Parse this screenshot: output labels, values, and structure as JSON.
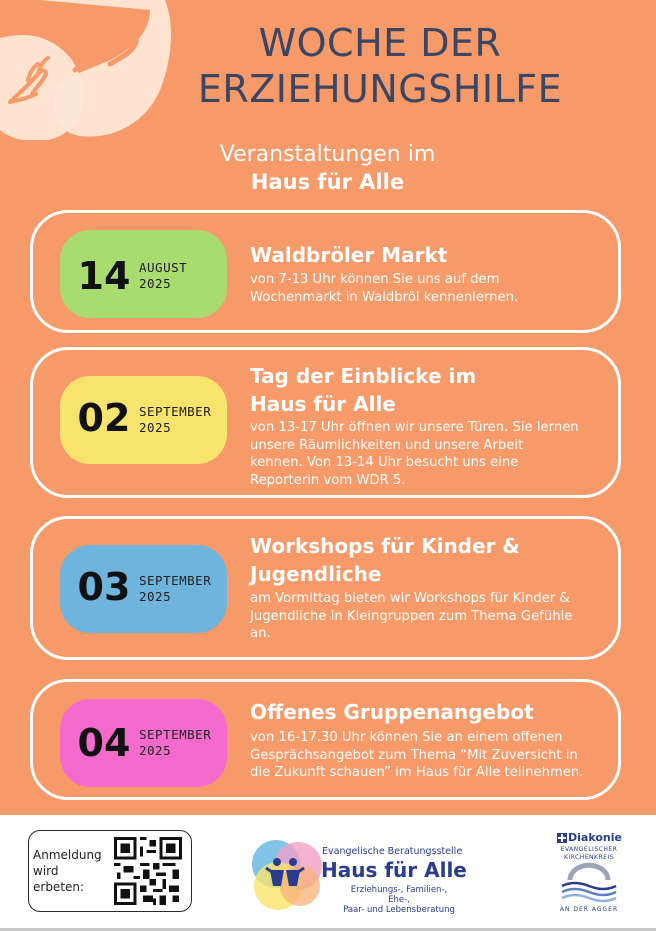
{
  "header": {
    "title_line1": "WOCHE DER",
    "title_line2": "ERZIEHUNGSHILFE",
    "subtitle_line1": "Veranstaltungen im",
    "subtitle_line2": "Haus für Alle"
  },
  "events": [
    {
      "day": "14",
      "month": "AUGUST",
      "year": "2025",
      "title_line1": "Waldbröler Markt",
      "desc_lines": [
        "von 7-13 Uhr können Sie uns auf dem",
        "Wochenmarkt in Waldbröl kennenlernen."
      ],
      "color": "#a8dc6e"
    },
    {
      "day": "02",
      "month": "SEPTEMBER",
      "year": "2025",
      "title_line1": "Tag der Einblicke im",
      "title_line2": "Haus für Alle",
      "desc_lines": [
        "von 13-17 Uhr öffnen wir unsere Türen. Sie lernen",
        "unsere Räumlichkeiten und unsere Arbeit",
        "kennen. Von 13-14 Uhr besucht uns eine",
        "Reporterin vom WDR 5."
      ],
      "color": "#f8e46c"
    },
    {
      "day": "03",
      "month": "SEPTEMBER",
      "year": "2025",
      "title_line1": "Workshops für Kinder &",
      "title_line2": "Jugendliche",
      "desc_lines": [
        "am Vormittag bieten wir Workshops für Kinder &",
        "Jugendliche in Kleingruppen zum Thema Gefühle",
        "an."
      ],
      "color": "#6fb4dc"
    },
    {
      "day": "04",
      "month": "SEPTEMBER",
      "year": "2025",
      "title_line1": "Offenes Gruppenangebot",
      "desc_lines": [
        "von 16-17.30 Uhr können Sie an einem offenen",
        "Gesprächsangebot zum Thema “Mit Zuversicht in",
        "die Zukunft schauen” im Haus für Alle teilnehmen."
      ],
      "color": "#f46bcd"
    }
  ],
  "footer": {
    "registration_lines": [
      "Anmeldung",
      "wird",
      "erbeten:"
    ],
    "brand_sub": "Evangelische Beratungsstelle",
    "brand_name": "Haus für Alle",
    "brand_tag_lines": [
      "Erziehungs-, Familien-, Ehe-,",
      "Paar- und Lebensberatung"
    ],
    "diakonie": "Diakonie",
    "kirchenkreis_lines": [
      "EVANGELISCHER",
      "KIRCHENKREIS"
    ],
    "kirchenkreis_foot": "AN DER AGGER"
  },
  "colors": {
    "background": "#f79a6a",
    "title": "#3b4663",
    "brand": "#2a3c8e"
  },
  "icons": [
    "hands-illustration-icon",
    "qr-code-icon",
    "haus-fuer-alle-logo-icon",
    "diakonie-cross-icon",
    "kirchenkreis-emblem-icon"
  ]
}
